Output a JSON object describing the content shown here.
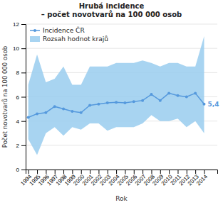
{
  "chart_data": {
    "type": "line",
    "title": "Hrubá incidence\n– počet novotvarů na 100 000 osob",
    "xlabel": "Rok",
    "ylabel": "Počet novotvarů na 100 000 osob",
    "x": [
      1994,
      1995,
      1996,
      1997,
      1998,
      1999,
      2000,
      2001,
      2002,
      2003,
      2004,
      2005,
      2006,
      2007,
      2008,
      2009,
      2010,
      2011,
      2012,
      2013,
      2014
    ],
    "series": [
      {
        "name": "Incidence ČR",
        "type": "line",
        "color": "#5599dd",
        "marker": "circle",
        "values": [
          4.3,
          4.6,
          4.7,
          5.2,
          5.0,
          4.8,
          4.7,
          5.3,
          5.4,
          5.5,
          5.55,
          5.5,
          5.6,
          5.7,
          6.2,
          5.7,
          6.3,
          6.1,
          6.0,
          6.3,
          5.4
        ]
      },
      {
        "name": "Rozsah hodnot krajů",
        "type": "area",
        "color": "#99ccee",
        "low": [
          2.5,
          1.2,
          3.0,
          3.5,
          2.8,
          3.5,
          3.3,
          3.8,
          3.8,
          3.2,
          3.5,
          3.5,
          3.5,
          3.8,
          4.5,
          4.0,
          4.0,
          4.2,
          3.5,
          4.0,
          3.0
        ],
        "high": [
          7.0,
          9.5,
          7.2,
          7.5,
          8.5,
          7.0,
          7.0,
          8.5,
          8.5,
          8.5,
          8.8,
          8.8,
          8.8,
          9.0,
          8.8,
          8.5,
          8.8,
          8.8,
          8.5,
          8.5,
          11.0
        ]
      }
    ],
    "annotations": [
      {
        "text": "5,4",
        "x": 2014,
        "y": 5.4
      }
    ],
    "xlim": [
      1993.7,
      2015.5
    ],
    "xticks": [
      1994,
      1995,
      1996,
      1997,
      1998,
      1999,
      2000,
      2001,
      2002,
      2003,
      2004,
      2005,
      2006,
      2007,
      2008,
      2009,
      2010,
      2011,
      2012,
      2013,
      2014
    ],
    "ylim": [
      0,
      12
    ],
    "yticks": [
      0,
      2,
      4,
      6,
      8,
      10,
      12
    ],
    "grid": true,
    "legend": "upper left"
  }
}
